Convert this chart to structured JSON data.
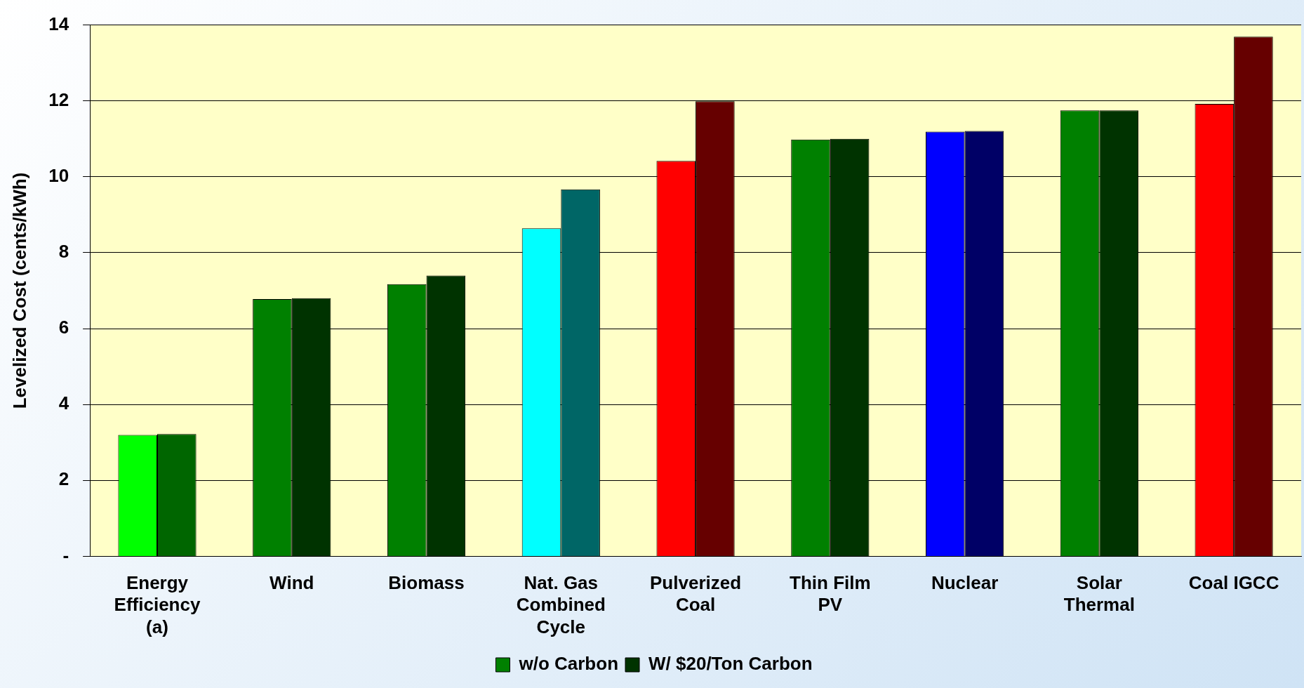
{
  "chart_data": {
    "type": "bar",
    "ylabel": "Levelized Cost (cents/kWh)",
    "categories": [
      "Energy Efficiency (a)",
      "Wind",
      "Biomass",
      "Nat. Gas Combined Cycle",
      "Pulverized Coal",
      "Thin Film PV",
      "Nuclear",
      "Solar Thermal",
      "Coal IGCC"
    ],
    "series": [
      {
        "name": "w/o Carbon",
        "color": "#008000",
        "colors": [
          "#00ff00",
          "#008000",
          "#008000",
          "#00ffff",
          "#ff0000",
          "#008000",
          "#0000ff",
          "#008000",
          "#ff0000"
        ],
        "values": [
          3.2,
          6.78,
          7.17,
          8.64,
          10.42,
          10.98,
          11.19,
          11.75,
          11.92
        ]
      },
      {
        "name": "W/ $20/Ton Carbon",
        "color": "#003300",
        "colors": [
          "#006600",
          "#003300",
          "#003300",
          "#006666",
          "#660000",
          "#003300",
          "#000066",
          "#003300",
          "#660000"
        ],
        "values": [
          3.22,
          6.8,
          7.4,
          9.67,
          11.99,
          11.0,
          11.21,
          11.75,
          13.69
        ]
      }
    ],
    "ylim": [
      0,
      14
    ],
    "yticks": [
      {
        "value": 0,
        "label": "-"
      },
      2,
      4,
      6,
      8,
      10,
      12,
      14
    ],
    "grid": "y",
    "legend": "bottom"
  }
}
